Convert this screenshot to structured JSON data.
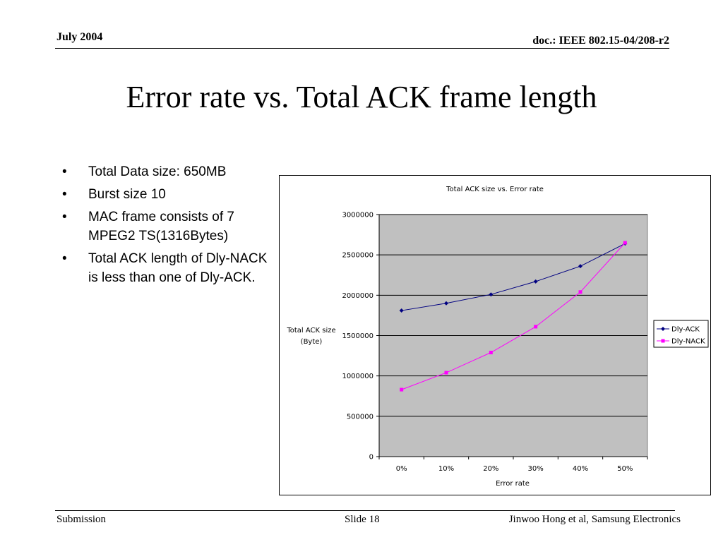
{
  "header": {
    "date": "July 2004",
    "doc": "doc.: IEEE 802.15-04/208-r2"
  },
  "slide_title": "Error rate vs. Total ACK frame length",
  "bullets": [
    "Total Data size: 650MB",
    "Burst size 10",
    "MAC frame consists of 7 MPEG2 TS(1316Bytes)",
    "Total ACK length of Dly-NACK is less than one of Dly-ACK."
  ],
  "bullet_glyph": "•",
  "footer": {
    "left": "Submission",
    "center": "Slide 18",
    "right": "Jinwoo Hong et al, Samsung Electronics"
  },
  "chart_data": {
    "type": "line",
    "title": "Total ACK size vs. Error rate",
    "xlabel": "Error rate",
    "ylabel": [
      "Total ACK size",
      "(Byte)"
    ],
    "categories": [
      "0%",
      "10%",
      "20%",
      "30%",
      "40%",
      "50%"
    ],
    "ylim": [
      0,
      3000000
    ],
    "yticks": [
      0,
      500000,
      1000000,
      1500000,
      2000000,
      2500000,
      3000000
    ],
    "grid": true,
    "plot_background": "#c0c0c0",
    "legend_position": "right",
    "series": [
      {
        "name": "Dly-ACK",
        "color": "#000080",
        "marker": "diamond",
        "values": [
          1810000,
          1900000,
          2010000,
          2170000,
          2360000,
          2640000
        ]
      },
      {
        "name": "Dly-NACK",
        "color": "#ff00ff",
        "marker": "square",
        "values": [
          830000,
          1040000,
          1290000,
          1610000,
          2040000,
          2650000
        ]
      }
    ]
  }
}
